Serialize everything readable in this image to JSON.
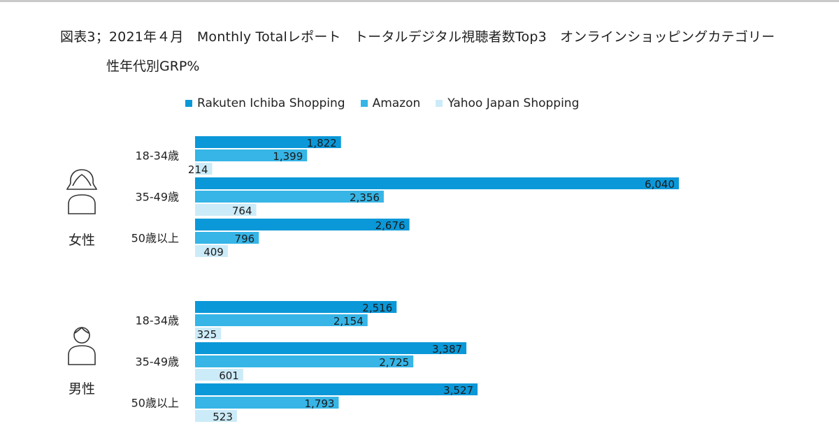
{
  "title_line1": "図表3；2021年４月　Monthly Totalレポート　トータルデジタル視聴者数Top3　オンラインショッピングカテゴリー",
  "title_line2": "性年代別GRP%",
  "legend": [
    {
      "name": "Rakuten Ichiba Shopping",
      "color": "#0b98d8"
    },
    {
      "name": "Amazon",
      "color": "#36b5e6"
    },
    {
      "name": "Yahoo Japan Shopping",
      "color": "#ccebf8"
    }
  ],
  "chart_data": {
    "type": "bar",
    "orientation": "horizontal",
    "series_names": [
      "Rakuten Ichiba Shopping",
      "Amazon",
      "Yahoo Japan Shopping"
    ],
    "groups": [
      {
        "gender": "女性",
        "icon": "female-person-icon",
        "rows": [
          {
            "label": "18-34歳",
            "values": [
              1822,
              1399,
              214
            ],
            "labels": [
              "1,822",
              "1,399",
              "214"
            ]
          },
          {
            "label": "35-49歳",
            "values": [
              6040,
              2356,
              764
            ],
            "labels": [
              "6,040",
              "2,356",
              "764"
            ]
          },
          {
            "label": "50歳以上",
            "values": [
              2676,
              796,
              409
            ],
            "labels": [
              "2,676",
              "796",
              "409"
            ]
          }
        ]
      },
      {
        "gender": "男性",
        "icon": "male-person-icon",
        "rows": [
          {
            "label": "18-34歳",
            "values": [
              2516,
              2154,
              325
            ],
            "labels": [
              "2,516",
              "2,154",
              "325"
            ]
          },
          {
            "label": "35-49歳",
            "values": [
              3387,
              2725,
              601
            ],
            "labels": [
              "3,387",
              "2,725",
              "601"
            ]
          },
          {
            "label": "50歳以上",
            "values": [
              3527,
              1793,
              523
            ],
            "labels": [
              "3,527",
              "1,793",
              "523"
            ]
          }
        ]
      }
    ],
    "x_range": [
      0,
      6040
    ],
    "grid": false,
    "legend_position": "top"
  }
}
